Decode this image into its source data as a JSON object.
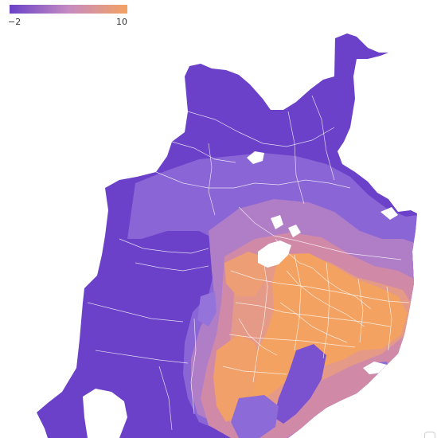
{
  "legend": {
    "min_label": "−2",
    "max_label": "10",
    "min_value": -2,
    "max_value": 10,
    "color_low": "#6a41c8",
    "color_mid": "#c58bc2",
    "color_high": "#f4a261"
  },
  "map": {
    "background": "#ffffff",
    "boundary_color": "#ffffff"
  }
}
